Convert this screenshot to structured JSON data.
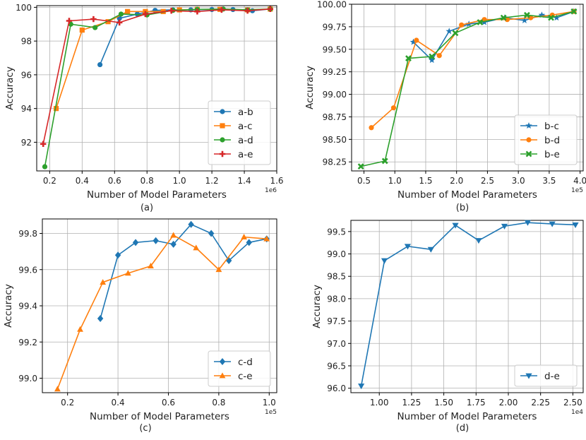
{
  "chart_data": [
    {
      "type": "line",
      "caption": "(a)",
      "xlabel": "Number of Model Parameters",
      "ylabel": "Accuracy",
      "x_scale_label": "1e6",
      "xlim": [
        0.12,
        1.6
      ],
      "ylim": [
        90.3,
        100.1
      ],
      "xticks": [
        0.2,
        0.4,
        0.6,
        0.8,
        1.0,
        1.2,
        1.4,
        1.6
      ],
      "xtick_labels": [
        "0.2",
        "0.4",
        "0.6",
        "0.8",
        "1.0",
        "1.2",
        "1.4",
        "1.6"
      ],
      "yticks": [
        92,
        94,
        96,
        98,
        100
      ],
      "ytick_labels": [
        "92",
        "94",
        "96",
        "98",
        "100"
      ],
      "grid": true,
      "legend_position": "lower right",
      "series": [
        {
          "name": "a-b",
          "color": "#1f77b4",
          "marker": "circle",
          "x": [
            0.51,
            0.63,
            0.74,
            0.85,
            0.96,
            1.07,
            1.2,
            1.33,
            1.45,
            1.56
          ],
          "y": [
            96.6,
            99.35,
            99.6,
            99.82,
            99.85,
            99.85,
            99.87,
            99.87,
            99.8,
            99.9
          ]
        },
        {
          "name": "a-c",
          "color": "#ff7f0e",
          "marker": "square",
          "x": [
            0.24,
            0.4,
            0.56,
            0.68,
            0.79,
            0.9,
            1.0,
            1.11,
            1.25,
            1.42,
            1.56
          ],
          "y": [
            94.0,
            98.65,
            99.15,
            99.75,
            99.75,
            99.75,
            99.85,
            99.88,
            99.88,
            99.85,
            99.9
          ]
        },
        {
          "name": "a-d",
          "color": "#2ca02c",
          "marker": "circle",
          "x": [
            0.17,
            0.33,
            0.48,
            0.64,
            0.8,
            0.96,
            1.11,
            1.27,
            1.42,
            1.56
          ],
          "y": [
            90.55,
            99.0,
            98.8,
            99.6,
            99.55,
            99.82,
            99.88,
            99.9,
            99.85,
            99.9
          ]
        },
        {
          "name": "a-e",
          "color": "#d62728",
          "marker": "plus",
          "x": [
            0.16,
            0.32,
            0.47,
            0.63,
            0.79,
            0.95,
            1.11,
            1.26,
            1.42,
            1.56
          ],
          "y": [
            91.9,
            99.2,
            99.3,
            99.1,
            99.6,
            99.8,
            99.75,
            99.85,
            99.8,
            99.9
          ]
        }
      ]
    },
    {
      "type": "line",
      "caption": "(b)",
      "xlabel": "Number of Model Parameters",
      "ylabel": "Accuracy",
      "x_scale_label": "1e5",
      "xlim": [
        0.3,
        4.05
      ],
      "ylim": [
        98.15,
        100.0
      ],
      "xticks": [
        0.5,
        1.0,
        1.5,
        2.0,
        2.5,
        3.0,
        3.5,
        4.0
      ],
      "xtick_labels": [
        "0.5",
        "1.0",
        "1.5",
        "2.0",
        "2.5",
        "3.0",
        "3.5",
        "4.0"
      ],
      "yticks": [
        98.25,
        98.5,
        98.75,
        99.0,
        99.25,
        99.5,
        99.75,
        100.0
      ],
      "ytick_labels": [
        "98.25",
        "98.50",
        "98.75",
        "99.00",
        "99.25",
        "99.50",
        "99.75",
        "100.00"
      ],
      "grid": true,
      "legend_position": "lower right",
      "series": [
        {
          "name": "b-c",
          "color": "#1f77b4",
          "marker": "star",
          "x": [
            1.3,
            1.6,
            1.88,
            2.2,
            2.45,
            2.78,
            3.1,
            3.38,
            3.62,
            3.9
          ],
          "y": [
            99.58,
            99.38,
            99.7,
            99.78,
            99.8,
            99.85,
            99.82,
            99.88,
            99.85,
            99.92
          ]
        },
        {
          "name": "b-d",
          "color": "#ff7f0e",
          "marker": "circle",
          "x": [
            0.62,
            0.98,
            1.35,
            1.72,
            2.08,
            2.45,
            2.82,
            3.2,
            3.55,
            3.9
          ],
          "y": [
            98.63,
            98.85,
            99.6,
            99.43,
            99.77,
            99.83,
            99.83,
            99.85,
            99.88,
            99.92
          ]
        },
        {
          "name": "b-e",
          "color": "#2ca02c",
          "marker": "x",
          "x": [
            0.45,
            0.84,
            1.22,
            1.6,
            1.98,
            2.38,
            2.76,
            3.14,
            3.53,
            3.9
          ],
          "y": [
            98.2,
            98.26,
            99.4,
            99.42,
            99.68,
            99.8,
            99.85,
            99.88,
            99.85,
            99.92
          ]
        }
      ]
    },
    {
      "type": "line",
      "caption": "(c)",
      "xlabel": "Number of Model Parameters",
      "ylabel": "Accuracy",
      "x_scale_label": "1e5",
      "xlim": [
        0.1,
        1.03
      ],
      "ylim": [
        98.92,
        99.88
      ],
      "xticks": [
        0.2,
        0.4,
        0.6,
        0.8,
        1.0
      ],
      "xtick_labels": [
        "0.2",
        "0.4",
        "0.6",
        "0.8",
        "1.0"
      ],
      "yticks": [
        99.0,
        99.2,
        99.4,
        99.6,
        99.8
      ],
      "ytick_labels": [
        "99.0",
        "99.2",
        "99.4",
        "99.6",
        "99.8"
      ],
      "grid": true,
      "legend_position": "lower right",
      "series": [
        {
          "name": "c-d",
          "color": "#1f77b4",
          "marker": "diamond",
          "x": [
            0.33,
            0.4,
            0.47,
            0.55,
            0.62,
            0.69,
            0.77,
            0.84,
            0.92,
            0.99
          ],
          "y": [
            99.33,
            99.68,
            99.75,
            99.76,
            99.74,
            99.85,
            99.8,
            99.65,
            99.75,
            99.77
          ]
        },
        {
          "name": "c-e",
          "color": "#ff7f0e",
          "marker": "triangle-up",
          "x": [
            0.16,
            0.25,
            0.34,
            0.44,
            0.53,
            0.62,
            0.71,
            0.8,
            0.9,
            0.99
          ],
          "y": [
            98.94,
            99.27,
            99.53,
            99.58,
            99.62,
            99.79,
            99.72,
            99.6,
            99.78,
            99.77
          ]
        }
      ]
    },
    {
      "type": "line",
      "caption": "(d)",
      "xlabel": "Number of Model Parameters",
      "ylabel": "Accuracy",
      "x_scale_label": "1e4",
      "xlim": [
        0.78,
        2.58
      ],
      "ylim": [
        95.9,
        99.75
      ],
      "xticks": [
        1.0,
        1.25,
        1.5,
        1.75,
        2.0,
        2.25,
        2.5
      ],
      "xtick_labels": [
        "1.00",
        "1.25",
        "1.50",
        "1.75",
        "2.00",
        "2.25",
        "2.50"
      ],
      "yticks": [
        96.0,
        96.5,
        97.0,
        97.5,
        98.0,
        98.5,
        99.0,
        99.5
      ],
      "ytick_labels": [
        "96.0",
        "96.5",
        "97.0",
        "97.5",
        "98.0",
        "98.5",
        "99.0",
        "99.5"
      ],
      "grid": true,
      "legend_position": "lower right",
      "series": [
        {
          "name": "d-e",
          "color": "#1f77b4",
          "marker": "triangle-down",
          "x": [
            0.86,
            1.04,
            1.22,
            1.4,
            1.59,
            1.77,
            1.97,
            2.15,
            2.34,
            2.52
          ],
          "y": [
            96.05,
            98.85,
            99.17,
            99.1,
            99.64,
            99.3,
            99.62,
            99.7,
            99.67,
            99.65
          ]
        }
      ]
    }
  ]
}
